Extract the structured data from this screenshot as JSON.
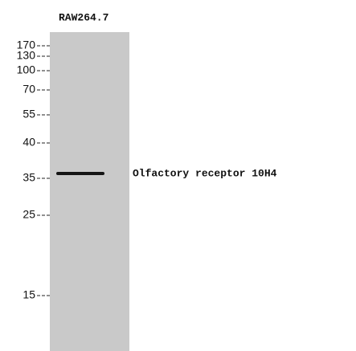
{
  "lane_label": "RAW264.7",
  "markers": [
    "170",
    "130",
    "100",
    "70",
    "55",
    "40",
    "35",
    "25",
    "15"
  ],
  "band_label": "Olfactory receptor 10H4"
}
